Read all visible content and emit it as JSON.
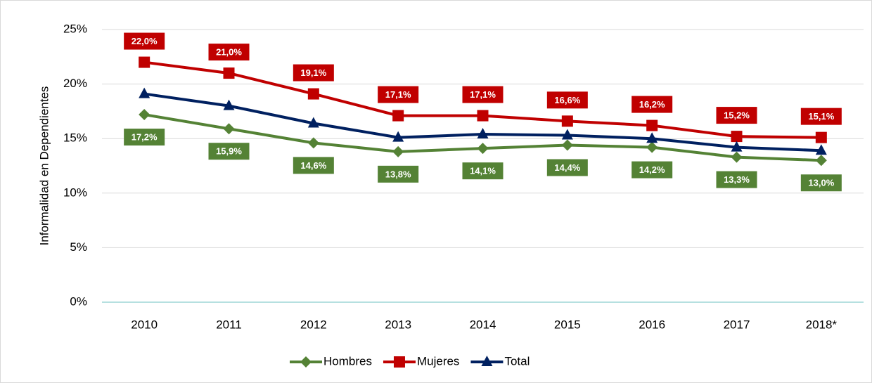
{
  "chart_data": {
    "type": "line",
    "y_label": "Informalidad en Dependientes",
    "categories": [
      "2010",
      "2011",
      "2012",
      "2013",
      "2014",
      "2015",
      "2016",
      "2017",
      "2018*"
    ],
    "series": [
      {
        "name": "Hombres",
        "color": "#548235",
        "marker": "diamond",
        "values": [
          17.2,
          15.9,
          14.6,
          13.8,
          14.1,
          14.4,
          14.2,
          13.3,
          13.0
        ],
        "value_labels": [
          "17,2%",
          "15,9%",
          "14,6%",
          "13,8%",
          "14,1%",
          "14,4%",
          "14,2%",
          "13,3%",
          "13,0%"
        ]
      },
      {
        "name": "Mujeres",
        "color": "#c00000",
        "marker": "square",
        "values": [
          22.0,
          21.0,
          19.1,
          17.1,
          17.1,
          16.6,
          16.2,
          15.2,
          15.1
        ],
        "value_labels": [
          "22,0%",
          "21,0%",
          "19,1%",
          "17,1%",
          "17,1%",
          "16,6%",
          "16,2%",
          "15,2%",
          "15,1%"
        ]
      },
      {
        "name": "Total",
        "color": "#002060",
        "marker": "triangle",
        "values": [
          19.1,
          18.0,
          16.4,
          15.1,
          15.4,
          15.3,
          15.0,
          14.2,
          13.9
        ]
      }
    ],
    "ylim": [
      0,
      25
    ],
    "yticks": [
      {
        "value": 0,
        "label": "0%"
      },
      {
        "value": 5,
        "label": "5%"
      },
      {
        "value": 10,
        "label": "10%"
      },
      {
        "value": 15,
        "label": "15%"
      },
      {
        "value": 20,
        "label": "20%"
      },
      {
        "value": 25,
        "label": "25%"
      }
    ],
    "grid": true,
    "legend": "bottom"
  }
}
